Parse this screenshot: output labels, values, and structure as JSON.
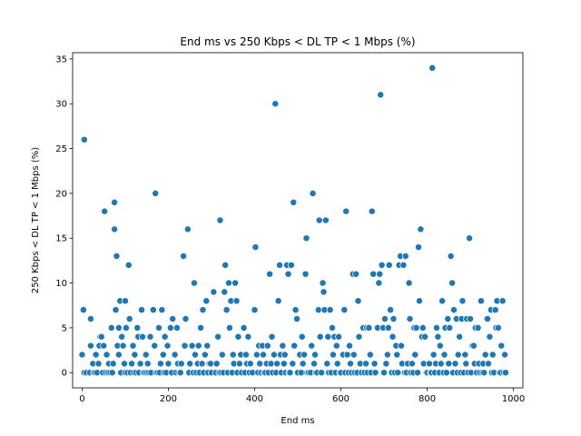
{
  "chart_data": {
    "type": "scatter",
    "title": "End ms vs 250 Kbps < DL TP < 1 Mbps (%)",
    "xlabel": "End ms",
    "ylabel": "250 Kbps < DL TP < 1 Mbps (%)",
    "xlim": [
      -22,
      1022
    ],
    "ylim": [
      -1.7,
      35.7
    ],
    "xticks": [
      0,
      200,
      400,
      600,
      800,
      1000
    ],
    "yticks": [
      0,
      5,
      10,
      15,
      20,
      25,
      30,
      35
    ],
    "grid": false,
    "legend": "none",
    "marker_color": "#1f77b4",
    "marker_edge_color": "#ffffff",
    "points": [
      [
        0,
        2
      ],
      [
        3,
        7
      ],
      [
        5,
        26
      ],
      [
        5,
        0
      ],
      [
        10,
        0
      ],
      [
        18,
        0
      ],
      [
        20,
        3
      ],
      [
        20,
        6
      ],
      [
        25,
        1
      ],
      [
        27,
        0
      ],
      [
        30,
        0
      ],
      [
        32,
        2
      ],
      [
        35,
        0
      ],
      [
        38,
        1
      ],
      [
        40,
        3
      ],
      [
        42,
        4
      ],
      [
        45,
        4
      ],
      [
        48,
        0
      ],
      [
        50,
        3
      ],
      [
        52,
        18
      ],
      [
        55,
        0
      ],
      [
        57,
        2
      ],
      [
        60,
        0
      ],
      [
        62,
        1
      ],
      [
        65,
        0
      ],
      [
        68,
        5
      ],
      [
        70,
        0
      ],
      [
        72,
        1
      ],
      [
        75,
        19
      ],
      [
        75,
        16
      ],
      [
        78,
        7
      ],
      [
        80,
        13
      ],
      [
        82,
        3
      ],
      [
        85,
        2
      ],
      [
        85,
        5
      ],
      [
        88,
        8
      ],
      [
        90,
        0
      ],
      [
        92,
        4
      ],
      [
        95,
        3
      ],
      [
        98,
        1
      ],
      [
        100,
        0
      ],
      [
        100,
        8
      ],
      [
        102,
        5
      ],
      [
        105,
        0
      ],
      [
        108,
        12
      ],
      [
        110,
        6
      ],
      [
        112,
        0
      ],
      [
        115,
        1
      ],
      [
        118,
        3
      ],
      [
        120,
        0
      ],
      [
        122,
        2
      ],
      [
        125,
        0
      ],
      [
        128,
        5
      ],
      [
        130,
        4
      ],
      [
        132,
        0
      ],
      [
        135,
        1
      ],
      [
        138,
        7
      ],
      [
        140,
        4
      ],
      [
        142,
        0
      ],
      [
        145,
        0
      ],
      [
        148,
        2
      ],
      [
        150,
        0
      ],
      [
        152,
        1
      ],
      [
        155,
        0
      ],
      [
        158,
        4
      ],
      [
        160,
        0
      ],
      [
        165,
        7
      ],
      [
        168,
        3
      ],
      [
        170,
        20
      ],
      [
        172,
        0
      ],
      [
        175,
        0
      ],
      [
        178,
        5
      ],
      [
        180,
        0
      ],
      [
        182,
        1
      ],
      [
        185,
        7
      ],
      [
        188,
        2
      ],
      [
        190,
        0
      ],
      [
        192,
        4
      ],
      [
        195,
        0
      ],
      [
        198,
        3
      ],
      [
        200,
        1
      ],
      [
        205,
        5
      ],
      [
        208,
        0
      ],
      [
        210,
        6
      ],
      [
        215,
        2
      ],
      [
        218,
        0
      ],
      [
        220,
        5
      ],
      [
        222,
        1
      ],
      [
        225,
        0
      ],
      [
        228,
        0
      ],
      [
        230,
        1
      ],
      [
        235,
        13
      ],
      [
        238,
        3
      ],
      [
        240,
        6
      ],
      [
        245,
        16
      ],
      [
        248,
        0
      ],
      [
        250,
        1
      ],
      [
        255,
        3
      ],
      [
        258,
        0
      ],
      [
        260,
        10
      ],
      [
        262,
        2
      ],
      [
        265,
        0
      ],
      [
        268,
        1
      ],
      [
        270,
        3
      ],
      [
        272,
        0
      ],
      [
        275,
        5
      ],
      [
        278,
        1
      ],
      [
        280,
        7
      ],
      [
        282,
        0
      ],
      [
        285,
        2
      ],
      [
        288,
        8
      ],
      [
        290,
        3
      ],
      [
        292,
        0
      ],
      [
        295,
        1
      ],
      [
        298,
        1
      ],
      [
        300,
        0
      ],
      [
        305,
        9
      ],
      [
        310,
        0
      ],
      [
        312,
        1
      ],
      [
        315,
        4
      ],
      [
        318,
        0
      ],
      [
        320,
        17
      ],
      [
        322,
        0
      ],
      [
        325,
        2
      ],
      [
        328,
        0
      ],
      [
        330,
        9
      ],
      [
        332,
        12
      ],
      [
        335,
        7
      ],
      [
        338,
        0
      ],
      [
        340,
        10
      ],
      [
        342,
        5
      ],
      [
        345,
        8
      ],
      [
        348,
        0
      ],
      [
        350,
        2
      ],
      [
        352,
        1
      ],
      [
        355,
        10
      ],
      [
        358,
        8
      ],
      [
        360,
        0
      ],
      [
        362,
        4
      ],
      [
        365,
        1
      ],
      [
        368,
        2
      ],
      [
        370,
        0
      ],
      [
        375,
        5
      ],
      [
        378,
        0
      ],
      [
        380,
        2
      ],
      [
        382,
        1
      ],
      [
        385,
        4
      ],
      [
        388,
        0
      ],
      [
        390,
        1
      ],
      [
        395,
        0
      ],
      [
        400,
        7
      ],
      [
        402,
        14
      ],
      [
        405,
        2
      ],
      [
        408,
        0
      ],
      [
        410,
        3
      ],
      [
        412,
        1
      ],
      [
        415,
        0
      ],
      [
        418,
        3
      ],
      [
        420,
        2
      ],
      [
        422,
        0
      ],
      [
        425,
        0
      ],
      [
        428,
        1
      ],
      [
        430,
        3
      ],
      [
        432,
        0
      ],
      [
        435,
        11
      ],
      [
        438,
        1
      ],
      [
        440,
        4
      ],
      [
        442,
        0
      ],
      [
        445,
        2
      ],
      [
        448,
        30
      ],
      [
        450,
        0
      ],
      [
        452,
        1
      ],
      [
        455,
        8
      ],
      [
        458,
        12
      ],
      [
        460,
        2
      ],
      [
        462,
        0
      ],
      [
        465,
        3
      ],
      [
        468,
        1
      ],
      [
        470,
        2
      ],
      [
        472,
        0
      ],
      [
        475,
        12
      ],
      [
        478,
        11
      ],
      [
        480,
        0
      ],
      [
        482,
        0
      ],
      [
        485,
        12
      ],
      [
        488,
        1
      ],
      [
        490,
        19
      ],
      [
        492,
        3
      ],
      [
        495,
        7
      ],
      [
        498,
        6
      ],
      [
        500,
        0
      ],
      [
        505,
        2
      ],
      [
        508,
        0
      ],
      [
        510,
        4
      ],
      [
        512,
        1
      ],
      [
        515,
        2
      ],
      [
        518,
        11
      ],
      [
        520,
        15
      ],
      [
        522,
        0
      ],
      [
        525,
        0
      ],
      [
        530,
        0
      ],
      [
        532,
        3
      ],
      [
        535,
        20
      ],
      [
        538,
        1
      ],
      [
        540,
        2
      ],
      [
        542,
        0
      ],
      [
        545,
        0
      ],
      [
        548,
        7
      ],
      [
        550,
        17
      ],
      [
        552,
        4
      ],
      [
        555,
        0
      ],
      [
        558,
        10
      ],
      [
        560,
        9
      ],
      [
        562,
        7
      ],
      [
        565,
        17
      ],
      [
        568,
        1
      ],
      [
        570,
        4
      ],
      [
        572,
        0
      ],
      [
        575,
        7
      ],
      [
        578,
        0
      ],
      [
        580,
        5
      ],
      [
        582,
        2
      ],
      [
        585,
        4
      ],
      [
        588,
        0
      ],
      [
        590,
        3
      ],
      [
        592,
        1
      ],
      [
        595,
        4
      ],
      [
        598,
        0
      ],
      [
        600,
        0
      ],
      [
        605,
        2
      ],
      [
        608,
        7
      ],
      [
        610,
        0
      ],
      [
        612,
        18
      ],
      [
        615,
        2
      ],
      [
        618,
        0
      ],
      [
        620,
        3
      ],
      [
        622,
        1
      ],
      [
        625,
        0
      ],
      [
        628,
        11
      ],
      [
        630,
        2
      ],
      [
        632,
        0
      ],
      [
        635,
        11
      ],
      [
        638,
        0
      ],
      [
        640,
        8
      ],
      [
        642,
        4
      ],
      [
        645,
        1
      ],
      [
        648,
        0
      ],
      [
        650,
        5
      ],
      [
        652,
        5
      ],
      [
        655,
        0
      ],
      [
        658,
        1
      ],
      [
        660,
        5
      ],
      [
        662,
        0
      ],
      [
        665,
        5
      ],
      [
        668,
        2
      ],
      [
        670,
        0
      ],
      [
        672,
        18
      ],
      [
        675,
        11
      ],
      [
        678,
        1
      ],
      [
        680,
        0
      ],
      [
        685,
        5
      ],
      [
        688,
        10
      ],
      [
        690,
        11
      ],
      [
        692,
        31
      ],
      [
        695,
        12
      ],
      [
        698,
        5
      ],
      [
        700,
        0
      ],
      [
        702,
        6
      ],
      [
        705,
        1
      ],
      [
        708,
        2
      ],
      [
        710,
        5
      ],
      [
        712,
        12
      ],
      [
        715,
        7
      ],
      [
        718,
        0
      ],
      [
        720,
        4
      ],
      [
        722,
        6
      ],
      [
        725,
        0
      ],
      [
        728,
        3
      ],
      [
        730,
        2
      ],
      [
        732,
        0
      ],
      [
        735,
        12
      ],
      [
        738,
        13
      ],
      [
        740,
        3
      ],
      [
        742,
        1
      ],
      [
        745,
        12
      ],
      [
        748,
        0
      ],
      [
        750,
        13
      ],
      [
        752,
        0
      ],
      [
        755,
        1
      ],
      [
        758,
        10
      ],
      [
        760,
        6
      ],
      [
        762,
        0
      ],
      [
        765,
        1
      ],
      [
        768,
        0
      ],
      [
        770,
        5
      ],
      [
        772,
        2
      ],
      [
        775,
        5
      ],
      [
        778,
        0
      ],
      [
        780,
        14
      ],
      [
        782,
        8
      ],
      [
        785,
        16
      ],
      [
        788,
        4
      ],
      [
        790,
        5
      ],
      [
        792,
        1
      ],
      [
        795,
        4
      ],
      [
        798,
        0
      ],
      [
        800,
        0
      ],
      [
        805,
        1
      ],
      [
        808,
        0
      ],
      [
        810,
        0
      ],
      [
        812,
        34
      ],
      [
        815,
        2
      ],
      [
        818,
        0
      ],
      [
        820,
        1
      ],
      [
        822,
        5
      ],
      [
        825,
        4
      ],
      [
        828,
        0
      ],
      [
        830,
        3
      ],
      [
        832,
        1
      ],
      [
        835,
        8
      ],
      [
        838,
        0
      ],
      [
        840,
        2
      ],
      [
        842,
        5
      ],
      [
        845,
        0
      ],
      [
        848,
        6
      ],
      [
        850,
        1
      ],
      [
        852,
        5
      ],
      [
        855,
        13
      ],
      [
        858,
        10
      ],
      [
        860,
        0
      ],
      [
        862,
        7
      ],
      [
        865,
        1
      ],
      [
        868,
        6
      ],
      [
        870,
        0
      ],
      [
        872,
        2
      ],
      [
        875,
        4
      ],
      [
        878,
        0
      ],
      [
        880,
        6
      ],
      [
        882,
        8
      ],
      [
        885,
        0
      ],
      [
        888,
        2
      ],
      [
        890,
        1
      ],
      [
        892,
        6
      ],
      [
        895,
        0
      ],
      [
        898,
        15
      ],
      [
        900,
        6
      ],
      [
        902,
        0
      ],
      [
        905,
        3
      ],
      [
        908,
        3
      ],
      [
        910,
        1
      ],
      [
        912,
        5
      ],
      [
        915,
        0
      ],
      [
        918,
        5
      ],
      [
        920,
        1
      ],
      [
        922,
        0
      ],
      [
        925,
        8
      ],
      [
        928,
        0
      ],
      [
        930,
        1
      ],
      [
        932,
        0
      ],
      [
        935,
        2
      ],
      [
        938,
        6
      ],
      [
        940,
        6
      ],
      [
        942,
        1
      ],
      [
        945,
        4
      ],
      [
        948,
        7
      ],
      [
        950,
        0
      ],
      [
        952,
        2
      ],
      [
        955,
        0
      ],
      [
        958,
        7
      ],
      [
        960,
        5
      ],
      [
        962,
        8
      ],
      [
        965,
        5
      ],
      [
        968,
        0
      ],
      [
        970,
        0
      ],
      [
        972,
        3
      ],
      [
        975,
        8
      ],
      [
        978,
        0
      ],
      [
        980,
        2
      ],
      [
        982,
        0
      ]
    ]
  }
}
